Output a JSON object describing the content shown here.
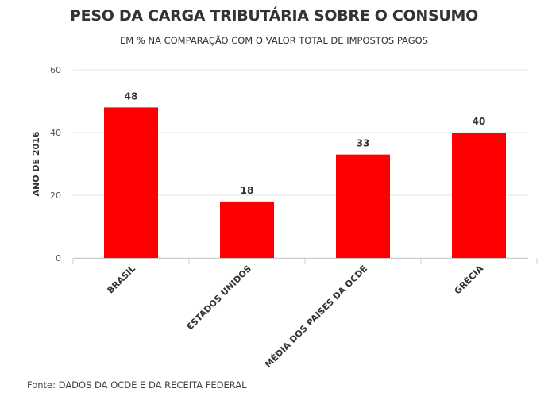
{
  "chart_data": {
    "type": "bar",
    "title": "PESO DA CARGA TRIBUTÁRIA SOBRE O CONSUMO",
    "subtitle": "EM % NA COMPARAÇÃO COM O VALOR TOTAL DE IMPOSTOS PAGOS",
    "xlabel": "",
    "ylabel": "ANO DE 2016",
    "categories": [
      "BRASIL",
      "ESTADOS UNIDOS",
      "MÉDIA DOS PAÍSES DA OCDE",
      "GRÉCIA"
    ],
    "values": [
      48,
      18,
      33,
      40
    ],
    "data_labels": [
      "48",
      "18",
      "33",
      "40"
    ],
    "ylim": [
      0,
      60
    ],
    "yticks": [
      0,
      20,
      40,
      60
    ],
    "grid": true,
    "legend": "none",
    "bar_color": "#ff0000",
    "source": "Fonte: DADOS DA OCDE E DA RECEITA FEDERAL"
  }
}
